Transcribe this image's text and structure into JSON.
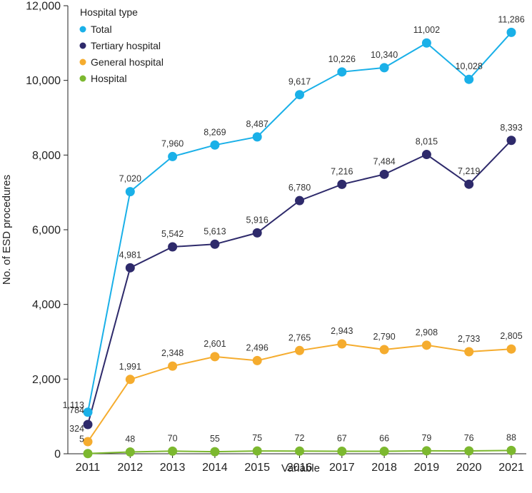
{
  "chart_data": {
    "type": "line",
    "title": "",
    "xlabel": "Variable",
    "ylabel": "No. of ESD procedures",
    "categories": [
      "2011",
      "2012",
      "2013",
      "2014",
      "2015",
      "2016",
      "2017",
      "2018",
      "2019",
      "2020",
      "2021"
    ],
    "ylim": [
      0,
      12000
    ],
    "yticks": [
      0,
      2000,
      4000,
      6000,
      8000,
      10000,
      12000
    ],
    "ytick_labels": [
      "0",
      "2,000",
      "4,000",
      "6,000",
      "8,000",
      "10,000",
      "12,000"
    ],
    "grid": false,
    "legend": {
      "title": "Hospital type",
      "placement": "top-left"
    },
    "series": [
      {
        "name": "Total",
        "color": "#1ab0e8",
        "values": [
          1113,
          7020,
          7960,
          8269,
          8487,
          9617,
          10226,
          10340,
          11002,
          10028,
          11286
        ],
        "labels": [
          "1,113",
          "7,020",
          "7,960",
          "8,269",
          "8,487",
          "9,617",
          "10,226",
          "10,340",
          "11,002",
          "10,028",
          "11,286"
        ]
      },
      {
        "name": "Tertiary hospital",
        "color": "#2e2a6b",
        "values": [
          784,
          4981,
          5542,
          5613,
          5916,
          6780,
          7216,
          7484,
          8015,
          7219,
          8393
        ],
        "labels": [
          "784",
          "4,981",
          "5,542",
          "5,613",
          "5,916",
          "6,780",
          "7,216",
          "7,484",
          "8,015",
          "7,219",
          "8,393"
        ]
      },
      {
        "name": "General hospital",
        "color": "#f5ac2e",
        "values": [
          324,
          1991,
          2348,
          2601,
          2496,
          2765,
          2943,
          2790,
          2908,
          2733,
          2805
        ],
        "labels": [
          "324",
          "1,991",
          "2,348",
          "2,601",
          "2,496",
          "2,765",
          "2,943",
          "2,790",
          "2,908",
          "2,733",
          "2,805"
        ]
      },
      {
        "name": "Hospital",
        "color": "#7cb82f",
        "values": [
          5,
          48,
          70,
          55,
          75,
          72,
          67,
          66,
          79,
          76,
          88
        ],
        "labels": [
          "5",
          "48",
          "70",
          "55",
          "75",
          "72",
          "67",
          "66",
          "79",
          "76",
          "88"
        ]
      }
    ]
  }
}
